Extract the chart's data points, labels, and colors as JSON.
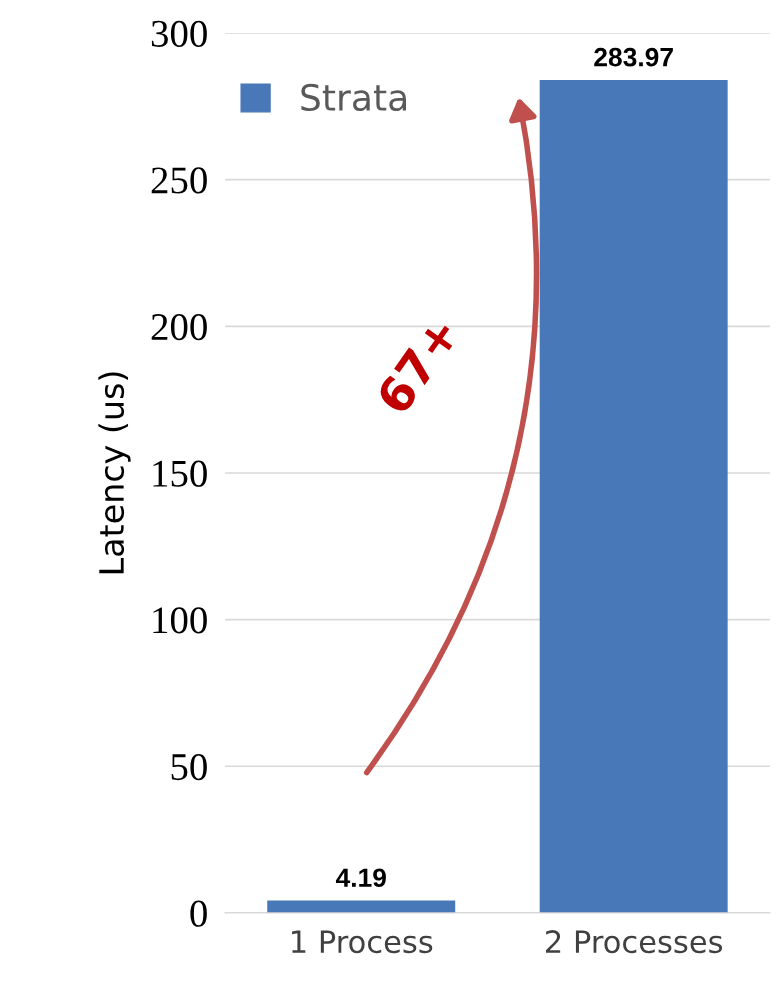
{
  "chart_data": {
    "type": "bar",
    "ylabel": "Latency (us)",
    "categories": [
      "1 Process",
      "2 Processes"
    ],
    "series": [
      {
        "name": "Strata",
        "color": "#4878b8",
        "values": [
          4.19,
          283.97
        ]
      }
    ],
    "ylim": [
      0,
      300
    ],
    "yticks": [
      0,
      50,
      100,
      150,
      200,
      250,
      300
    ],
    "grid": "y",
    "legend": "top left",
    "data_labels": true,
    "annotations": [
      "67+"
    ]
  }
}
